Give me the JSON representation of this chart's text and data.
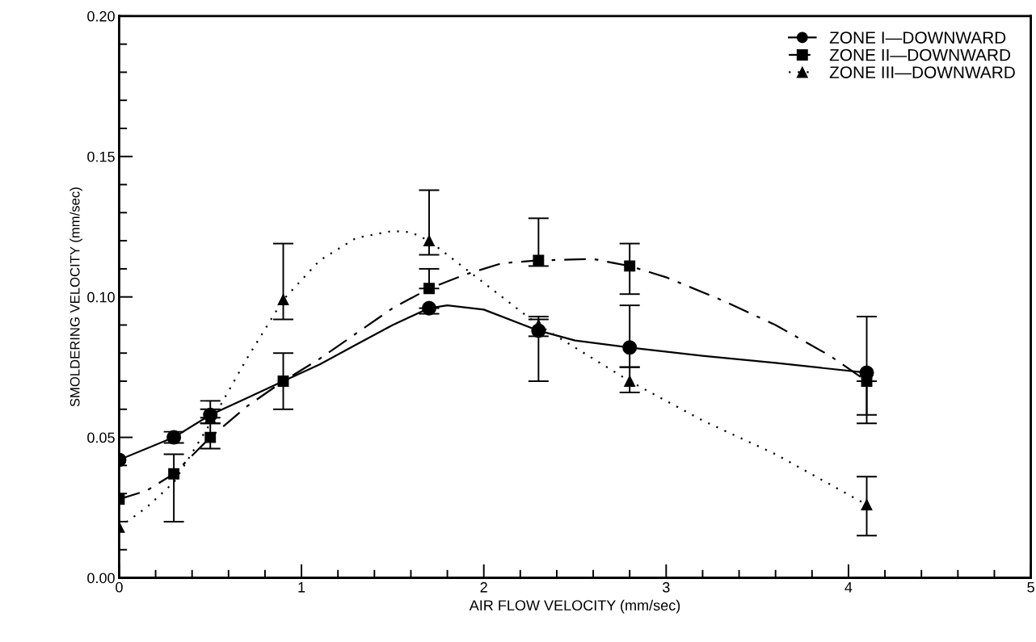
{
  "chart_data": {
    "type": "scatter",
    "xlabel": "AIR FLOW VELOCITY (mm/sec)",
    "ylabel": "SMOLDERING VELOCITY (mm/sec)",
    "x": [
      0,
      0.3,
      0.5,
      0.9,
      1.7,
      2.3,
      2.8,
      4.1
    ],
    "series": [
      {
        "name": "ZONE I—DOWNWARD",
        "color": "#000000",
        "marker": "circle",
        "line_style": "solid",
        "values": [
          0.042,
          0.05,
          0.058,
          null,
          0.096,
          0.088,
          0.082,
          0.073
        ],
        "errors": [
          null,
          [
            0.048,
            0.052
          ],
          [
            0.055,
            0.063
          ],
          null,
          [
            0.094,
            0.096
          ],
          [
            0.07,
            0.093
          ],
          [
            0.075,
            0.097
          ],
          [
            0.058,
            0.093
          ]
        ]
      },
      {
        "name": "ZONE II—DOWNWARD",
        "color": "#000000",
        "marker": "square",
        "line_style": "dashdot",
        "values": [
          0.028,
          0.037,
          0.05,
          0.07,
          0.103,
          0.113,
          0.111,
          0.07
        ],
        "errors": [
          null,
          [
            0.02,
            0.044
          ],
          [
            0.046,
            0.055
          ],
          [
            0.06,
            0.08
          ],
          [
            0.103,
            0.11
          ],
          [
            0.111,
            0.128
          ],
          [
            0.101,
            0.119
          ],
          [
            0.055,
            0.07
          ]
        ]
      },
      {
        "name": "ZONE III—DOWNWARD",
        "color": "#000000",
        "marker": "triangle",
        "line_style": "dotted",
        "values": [
          0.018,
          null,
          0.057,
          0.099,
          0.12,
          0.09,
          0.07,
          0.026
        ],
        "errors": [
          null,
          null,
          [
            0.057,
            0.06
          ],
          [
            0.092,
            0.119
          ],
          [
            0.115,
            0.138
          ],
          [
            0.086,
            0.092
          ],
          [
            0.066,
            0.075
          ],
          [
            0.015,
            0.036
          ]
        ]
      },
      {
        "type": "line",
        "color": "#000000",
        "line_style": "solid",
        "x": [
          0,
          0.3,
          0.5,
          0.7,
          0.9,
          1.1,
          1.3,
          1.5,
          1.7,
          1.8,
          2.0,
          2.3,
          2.5,
          2.8,
          3.2,
          3.6,
          4.1
        ],
        "values": [
          0.042,
          0.05,
          0.058,
          0.064,
          0.07,
          0.076,
          0.083,
          0.09,
          0.096,
          0.097,
          0.0955,
          0.088,
          0.0845,
          0.082,
          0.079,
          0.0765,
          0.073
        ]
      },
      {
        "type": "line",
        "color": "#000000",
        "line_style": "dashdot",
        "x": [
          0,
          0.15,
          0.3,
          0.5,
          0.7,
          0.9,
          1.1,
          1.3,
          1.5,
          1.7,
          1.9,
          2.1,
          2.3,
          2.6,
          2.8,
          3.0,
          3.3,
          3.6,
          3.9,
          4.1
        ],
        "values": [
          0.028,
          0.031,
          0.037,
          0.05,
          0.061,
          0.07,
          0.078,
          0.087,
          0.096,
          0.103,
          0.108,
          0.112,
          0.113,
          0.1135,
          0.111,
          0.107,
          0.099,
          0.09,
          0.079,
          0.07
        ]
      },
      {
        "type": "line",
        "color": "#000000",
        "line_style": "dotted",
        "x": [
          0,
          0.15,
          0.3,
          0.5,
          0.7,
          0.9,
          1.1,
          1.3,
          1.5,
          1.6,
          1.7,
          1.9,
          2.1,
          2.3,
          2.8,
          3.2,
          3.6,
          4.1
        ],
        "values": [
          0.018,
          0.025,
          0.034,
          0.055,
          0.078,
          0.099,
          0.113,
          0.121,
          0.1235,
          0.123,
          0.12,
          0.11,
          0.1,
          0.09,
          0.07,
          0.056,
          0.044,
          0.026
        ]
      }
    ],
    "xlim": [
      0,
      5
    ],
    "xticks": [
      0,
      1,
      2,
      3,
      4,
      5
    ],
    "ylim": [
      0,
      0.2
    ],
    "yticks": [
      {
        "value": 0,
        "label": "0.00"
      },
      {
        "value": 0.05,
        "label": "0.05"
      },
      {
        "value": 0.1,
        "label": "0.10"
      },
      {
        "value": 0.15,
        "label": "0.15"
      },
      {
        "value": 0.2,
        "label": "0.20"
      }
    ],
    "legend": "top right",
    "grid": false
  }
}
